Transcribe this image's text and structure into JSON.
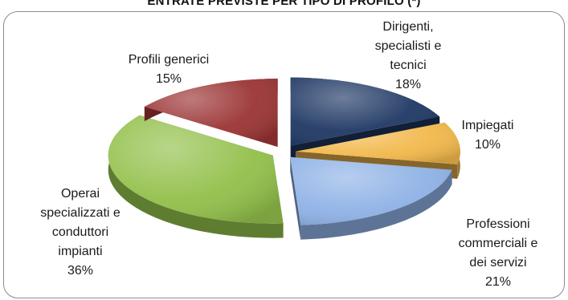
{
  "chart_data": {
    "type": "pie",
    "title": "ENTRATE PREVISTE PER TIPO DI PROFILO (*)",
    "slices": [
      {
        "label": [
          "Dirigenti,",
          "specialisti e",
          "tecnici"
        ],
        "percent_label": "18%",
        "value": 18,
        "color": "#1f3864"
      },
      {
        "label": [
          "Impiegati"
        ],
        "percent_label": "10%",
        "value": 10,
        "color": "#f2b84b"
      },
      {
        "label": [
          "Professioni",
          "commerciali e",
          "dei servizi"
        ],
        "percent_label": "21%",
        "value": 21,
        "color": "#8fb2e6"
      },
      {
        "label": [
          "Operai",
          "specializzati e",
          "conduttori",
          "impianti"
        ],
        "percent_label": "36%",
        "value": 36,
        "color": "#92c04a"
      },
      {
        "label": [
          "Profili generici"
        ],
        "percent_label": "15%",
        "value": 15,
        "color": "#9b3434"
      }
    ],
    "legend": "none"
  }
}
